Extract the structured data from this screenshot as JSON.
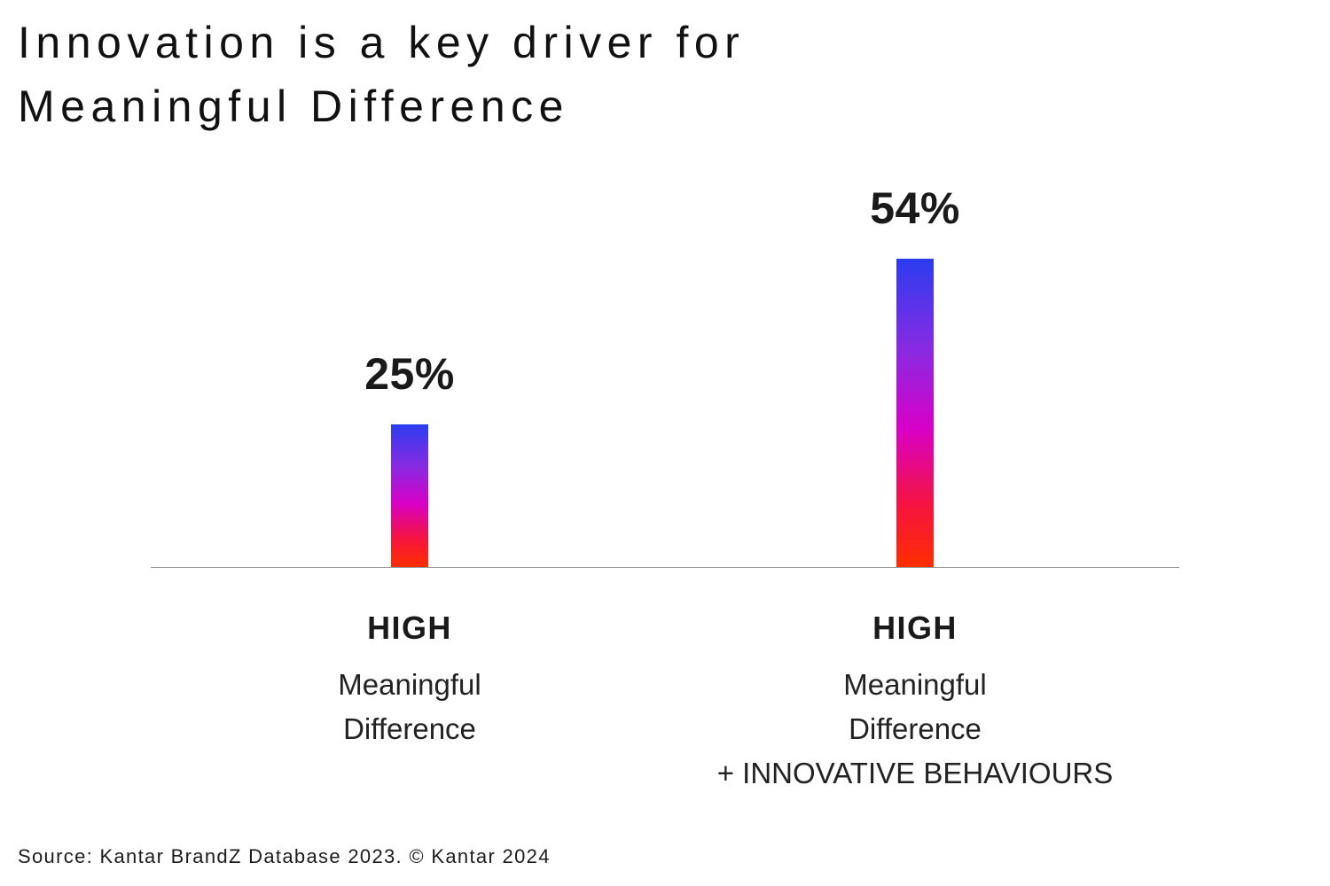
{
  "title": {
    "line1": "Innovation is a key driver for",
    "line2": "Meaningful Difference"
  },
  "source": "Source: Kantar BrandZ Database 2023. © Kantar 2024",
  "chart_data": {
    "type": "bar",
    "title": "Innovation is a key driver for Meaningful Difference",
    "categories": [
      "HIGH Meaningful Difference",
      "HIGH Meaningful Difference + INNOVATIVE BEHAVIOURS"
    ],
    "values": [
      25,
      54
    ],
    "xlabel": "",
    "ylabel": "",
    "ylim": [
      0,
      60
    ],
    "grid": false,
    "legend": false,
    "bar_gradient": [
      "#2b3cf0",
      "#d800c8",
      "#ff2e00"
    ],
    "bars": [
      {
        "value_label": "25%",
        "label_bold": "HIGH",
        "label_line1": "Meaningful",
        "label_line2": "Difference",
        "label_line3": ""
      },
      {
        "value_label": "54%",
        "label_bold": "HIGH",
        "label_line1": "Meaningful",
        "label_line2": "Difference",
        "label_line3": "+ INNOVATIVE BEHAVIOURS"
      }
    ]
  }
}
